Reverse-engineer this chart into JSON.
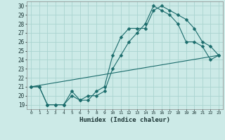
{
  "title": "",
  "xlabel": "Humidex (Indice chaleur)",
  "bg_color": "#cceae7",
  "grid_color": "#aad4d0",
  "line_color": "#1a6b6b",
  "xlim": [
    -0.5,
    23.5
  ],
  "ylim": [
    18.5,
    30.5
  ],
  "xticks": [
    0,
    1,
    2,
    3,
    4,
    5,
    6,
    7,
    8,
    9,
    10,
    11,
    12,
    13,
    14,
    15,
    16,
    17,
    18,
    19,
    20,
    21,
    22,
    23
  ],
  "yticks": [
    19,
    20,
    21,
    22,
    23,
    24,
    25,
    26,
    27,
    28,
    29,
    30
  ],
  "line1_x": [
    0,
    1,
    2,
    3,
    4,
    5,
    6,
    7,
    8,
    9,
    10,
    11,
    12,
    13,
    14,
    15,
    16,
    17,
    18,
    19,
    20,
    21,
    22,
    23
  ],
  "line1_y": [
    21,
    21,
    19,
    19,
    19,
    20.5,
    19.5,
    19.5,
    20.5,
    21,
    24.5,
    26.5,
    27.5,
    27.5,
    27.5,
    29.5,
    30,
    29.5,
    29,
    28.5,
    27.5,
    26,
    25.5,
    24.5
  ],
  "line2_x": [
    0,
    1,
    2,
    3,
    4,
    5,
    6,
    7,
    8,
    9,
    10,
    11,
    12,
    13,
    14,
    15,
    16,
    17,
    18,
    19,
    20,
    21,
    22,
    23
  ],
  "line2_y": [
    21,
    21,
    19,
    19,
    19,
    20,
    19.5,
    20,
    20,
    20.5,
    23,
    24.5,
    26,
    27,
    28,
    30,
    29.5,
    29,
    28,
    26,
    26,
    25.5,
    24,
    24.5
  ],
  "line3_x": [
    0,
    23
  ],
  "line3_y": [
    21,
    24.5
  ],
  "marker_size": 2.5
}
